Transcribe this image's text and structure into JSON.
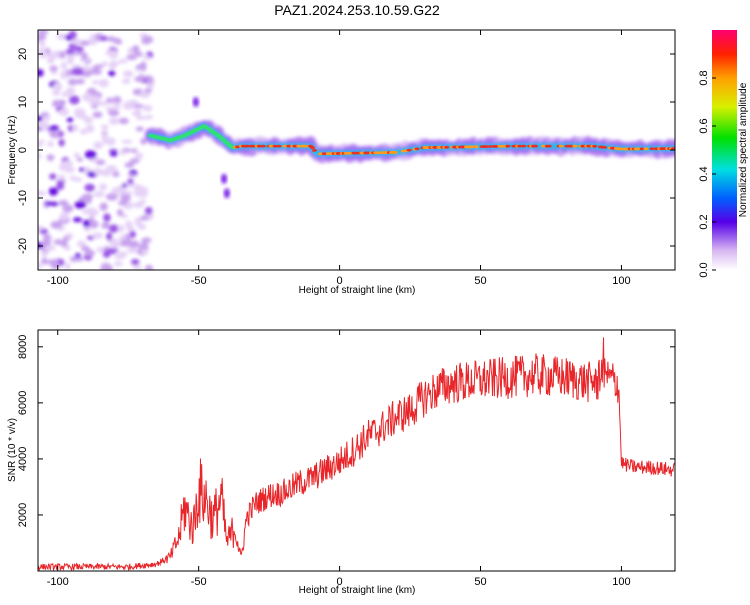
{
  "title": "PAZ1.2024.253.10.59.G22",
  "chart_data": [
    {
      "type": "heatmap",
      "xlabel": "Height of straight line (km)",
      "ylabel": "Frequency (Hz)",
      "xlim": [
        -107,
        119
      ],
      "ylim": [
        -25,
        25
      ],
      "x_ticks": [
        -100,
        -50,
        0,
        50,
        100
      ],
      "y_ticks": [
        -20,
        -10,
        0,
        10,
        20
      ],
      "colorbar": {
        "label": "Normalized spectral amplitude",
        "range": [
          0,
          1
        ],
        "ticks": [
          "0.0",
          "0.2",
          "0.4",
          "0.6",
          "0.8"
        ]
      },
      "ridge": {
        "description_points_x": [
          -67,
          -60,
          -55,
          -48,
          -43,
          -38,
          -35,
          -25,
          -10,
          -8,
          20,
          30,
          60,
          90,
          100,
          119
        ],
        "description_points_y": [
          3,
          2,
          3,
          5,
          3,
          0.5,
          0.8,
          0.8,
          0.8,
          -0.8,
          -0.5,
          0.5,
          0.8,
          0.8,
          0.2,
          0.3
        ]
      },
      "noise_region_x": [
        -107,
        -67
      ]
    },
    {
      "type": "line",
      "xlabel": "Height of straight line (km)",
      "ylabel": "SNR (10 * v/v)",
      "xlim": [
        -107,
        119
      ],
      "ylim": [
        0,
        8600
      ],
      "x_ticks": [
        -100,
        -50,
        0,
        50,
        100
      ],
      "y_ticks": [
        2000,
        4000,
        6000,
        8000
      ],
      "color": "#e8262a",
      "series": [
        {
          "x": [
            -107,
            -90,
            -75,
            -65,
            -60,
            -57,
            -55,
            -52,
            -50,
            -47,
            -45,
            -42,
            -40,
            -37,
            -35,
            -33,
            -30,
            -25,
            -20,
            -15,
            -10,
            -5,
            0,
            5,
            10,
            15,
            20,
            25,
            30,
            35,
            40,
            50,
            60,
            70,
            80,
            90,
            95,
            99,
            100,
            101,
            105,
            110,
            119
          ],
          "y": [
            150,
            150,
            150,
            250,
            500,
            1200,
            2300,
            1500,
            2900,
            2500,
            1800,
            2600,
            1000,
            1600,
            400,
            1900,
            2400,
            2700,
            2800,
            3100,
            3300,
            3600,
            3900,
            4300,
            4800,
            5100,
            5500,
            5700,
            6200,
            6500,
            6700,
            6800,
            6900,
            7000,
            6900,
            6700,
            6900,
            6700,
            3900,
            3800,
            3700,
            3700,
            3600
          ]
        }
      ]
    }
  ]
}
